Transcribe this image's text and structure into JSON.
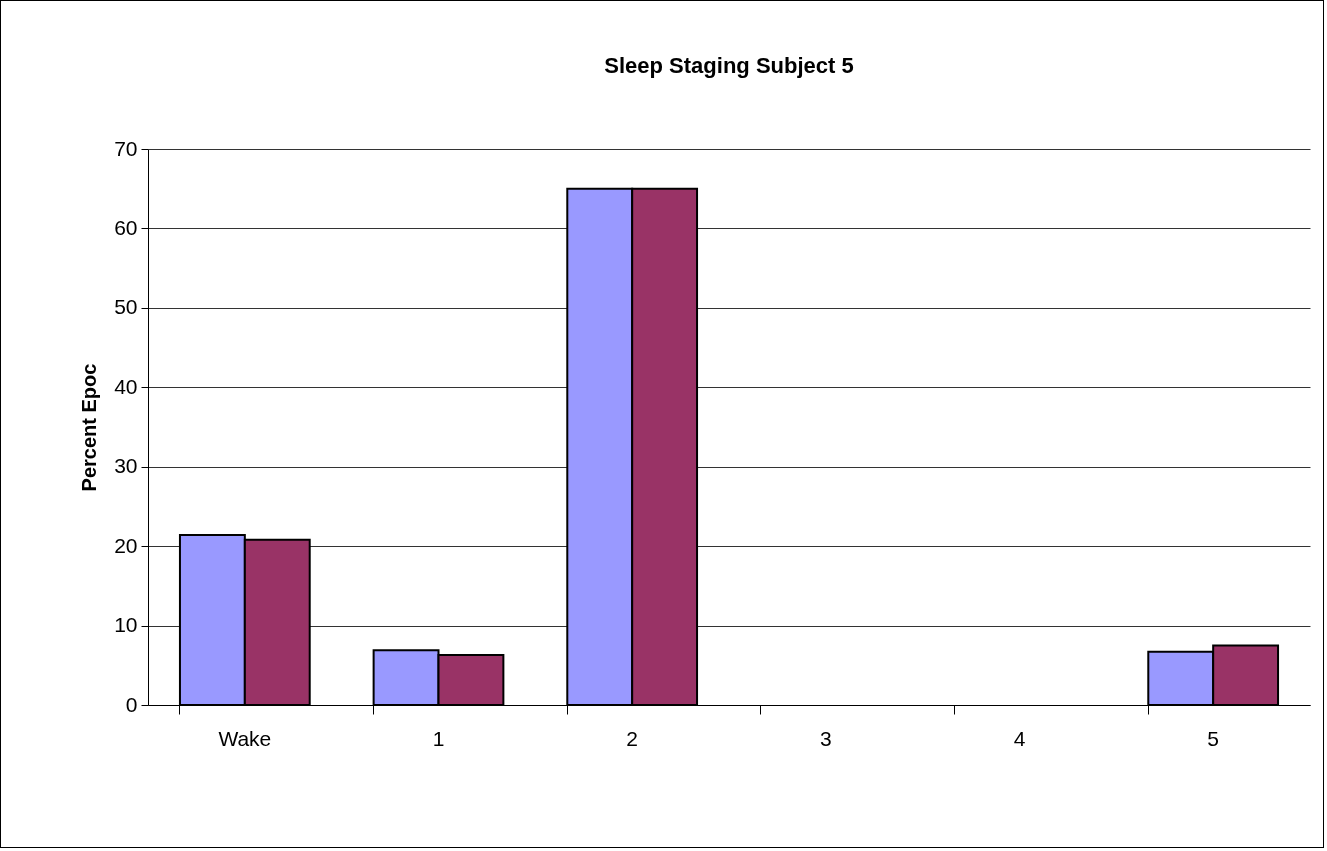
{
  "chart_data": {
    "type": "bar",
    "title": "Sleep Staging Subject 5",
    "ylabel": "Percent Epoc",
    "categories": [
      "Wake",
      "1",
      "2",
      "3",
      "4",
      "5"
    ],
    "series": [
      {
        "color": "#9999ff",
        "values": [
          21.4,
          6.9,
          65,
          0,
          0,
          6.7
        ]
      },
      {
        "color": "#993366",
        "values": [
          20.8,
          6.3,
          65,
          0,
          0,
          7.5
        ]
      }
    ],
    "ylim": [
      0,
      70
    ],
    "yticks": [
      0,
      10,
      20,
      30,
      40,
      50,
      60,
      70
    ],
    "grid": "y"
  }
}
